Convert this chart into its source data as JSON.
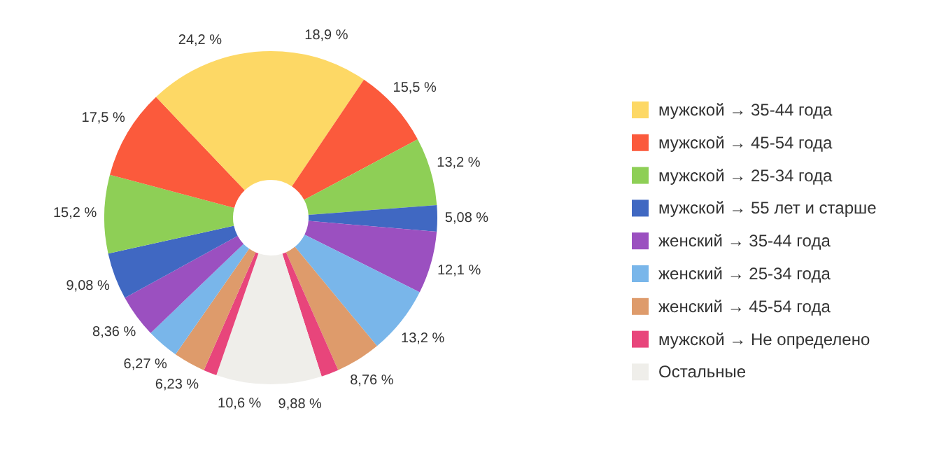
{
  "chart_data": {
    "type": "donut",
    "categories": [
      "мужской → 35-44 года",
      "мужской → 45-54 года",
      "мужской → 25-34 года",
      "мужской → 55 лет и старше",
      "женский → 35-44 года",
      "женский → 25-34 года",
      "женский → 45-54 года",
      "мужской → Не определено",
      "Остальные",
      null,
      null,
      null,
      null,
      null,
      null,
      null,
      null,
      null
    ],
    "colors": [
      "#fdd865",
      "#fb5a3c",
      "#8ecf56",
      "#4068c2",
      "#9b50c0",
      "#79b6ea",
      "#de9b6b",
      "#e8457b",
      "#efeeea",
      "#efeeea",
      "#e8457b",
      "#de9b6b",
      "#79b6ea",
      "#9b50c0",
      "#4068c2",
      "#8ecf56",
      "#fb5a3c",
      "#fdd865"
    ],
    "values": [
      18.9,
      15.5,
      13.2,
      5.08,
      12.1,
      13.2,
      8.76,
      3.38,
      9.88,
      10.6,
      2.56,
      6.23,
      6.27,
      8.36,
      9.08,
      15.2,
      17.5,
      24.2
    ],
    "value_labels": [
      "18,9 %",
      "15,5 %",
      "13,2 %",
      "5,08 %",
      "12,1 %",
      "13,2 %",
      "8,76 %",
      null,
      "9,88 %",
      "10,6 %",
      null,
      "6,23 %",
      "6,27 %",
      "8,36 %",
      "9,08 %",
      "15,2 %",
      "17,5 %",
      "24,2 %"
    ],
    "legend": "right"
  }
}
